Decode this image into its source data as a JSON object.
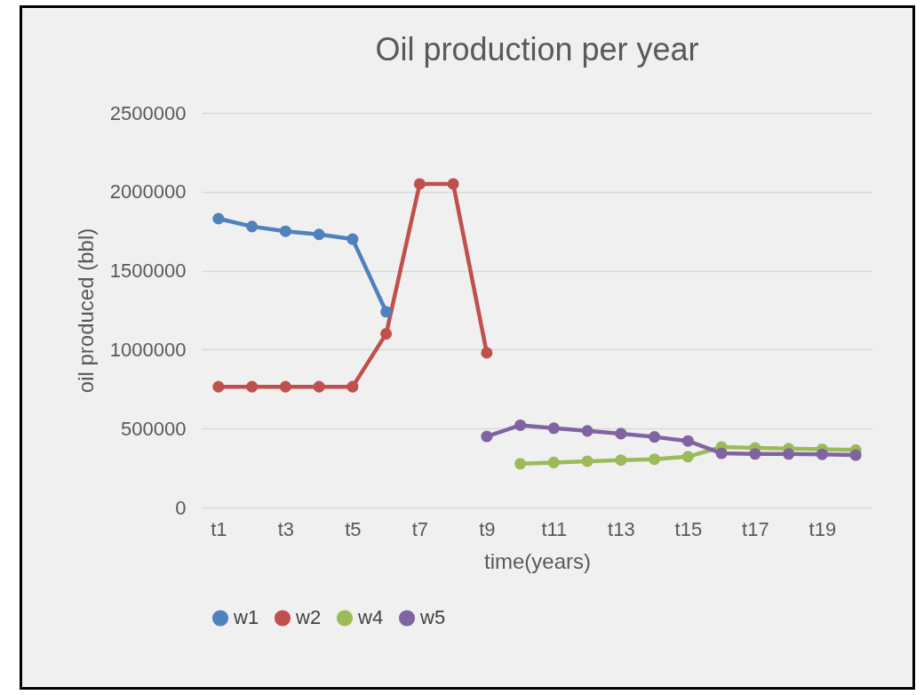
{
  "chart_data": {
    "type": "line",
    "title": "Oil production per year",
    "xlabel": "time(years)",
    "ylabel": "oil produced (bbl)",
    "categories": [
      "t1",
      null,
      "t3",
      null,
      "t5",
      null,
      "t7",
      null,
      "t9",
      null,
      "t11",
      null,
      "t13",
      null,
      "t15",
      null,
      "t17",
      null,
      "t19",
      null
    ],
    "series": [
      {
        "name": "w1",
        "color": "#4f81bd",
        "values": [
          1830000,
          1780000,
          1750000,
          1730000,
          1700000,
          1240000,
          null,
          null,
          null,
          null,
          null,
          null,
          null,
          null,
          null,
          null,
          null,
          null,
          null,
          null
        ]
      },
      {
        "name": "w2",
        "color": "#c0504d",
        "values": [
          765000,
          765000,
          765000,
          765000,
          765000,
          1100000,
          2050000,
          2050000,
          980000,
          null,
          null,
          null,
          null,
          null,
          null,
          null,
          null,
          null,
          null,
          null
        ]
      },
      {
        "name": "w4",
        "color": "#9bbb59",
        "values": [
          null,
          null,
          null,
          null,
          null,
          null,
          null,
          null,
          null,
          277000,
          285000,
          293000,
          300000,
          306000,
          322000,
          383000,
          377000,
          373000,
          369000,
          364000
        ]
      },
      {
        "name": "w5",
        "color": "#8064a2",
        "values": [
          null,
          null,
          null,
          null,
          null,
          null,
          null,
          null,
          450000,
          521000,
          502000,
          485000,
          468000,
          447000,
          421000,
          343000,
          339000,
          339000,
          337000,
          332000
        ]
      }
    ],
    "ylim": [
      0,
      2500000
    ],
    "yticks": [
      0,
      500000,
      1000000,
      1500000,
      2000000,
      2500000
    ],
    "grid": "y",
    "legend": "bottom",
    "marker": "circle",
    "line_style": "solid"
  }
}
